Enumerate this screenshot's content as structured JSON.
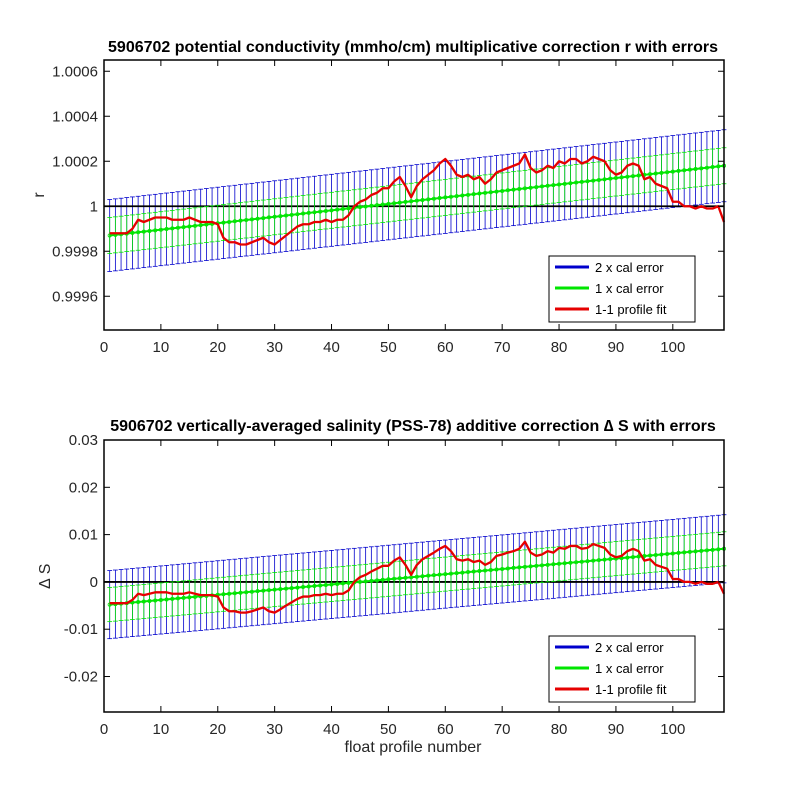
{
  "figure": {
    "background": "#ffffff"
  },
  "chart_data": [
    {
      "type": "line",
      "title": "5906702 potential conductivity (mmho/cm) multiplicative correction r with errors",
      "xlabel": "",
      "ylabel": "r",
      "xlim": [
        0,
        109
      ],
      "ylim": [
        0.99945,
        1.00065
      ],
      "xticks": [
        0,
        10,
        20,
        30,
        40,
        50,
        60,
        70,
        80,
        90,
        100
      ],
      "xtick_labels": [
        "0",
        "10",
        "20",
        "30",
        "40",
        "50",
        "60",
        "70",
        "80",
        "90",
        "100"
      ],
      "yticks": [
        0.9996,
        0.9998,
        1.0,
        1.0002,
        1.0004,
        1.0006
      ],
      "ytick_labels": [
        "0.9996",
        "0.9998",
        "1",
        "1.0002",
        "1.0004",
        "1.0006"
      ],
      "reference_line": 1,
      "fit": {
        "start": 0.99987,
        "end": 1.00018,
        "one_sigma": 8e-05,
        "two_sigma": 0.00016
      },
      "grid": false,
      "legend_position": "bottom-right",
      "series": [
        {
          "name": "2 x cal error",
          "color": "#0000cc",
          "kind": "errorbar-2x"
        },
        {
          "name": "1 x cal error",
          "color": "#00e600",
          "kind": "errorbar-1x"
        },
        {
          "name": "1-1 profile fit",
          "color": "#e60000",
          "kind": "line",
          "x": [
            1,
            2,
            3,
            4,
            5,
            6,
            7,
            8,
            9,
            10,
            11,
            12,
            13,
            14,
            15,
            16,
            17,
            18,
            19,
            20,
            21,
            22,
            23,
            24,
            25,
            26,
            27,
            28,
            29,
            30,
            31,
            32,
            33,
            34,
            35,
            36,
            37,
            38,
            39,
            40,
            41,
            42,
            43,
            44,
            45,
            46,
            47,
            48,
            49,
            50,
            51,
            52,
            53,
            54,
            55,
            56,
            57,
            58,
            59,
            60,
            61,
            62,
            63,
            64,
            65,
            66,
            67,
            68,
            69,
            70,
            71,
            72,
            73,
            74,
            75,
            76,
            77,
            78,
            79,
            80,
            81,
            82,
            83,
            84,
            85,
            86,
            87,
            88,
            89,
            90,
            91,
            92,
            93,
            94,
            95,
            96,
            97,
            98,
            99,
            100,
            101,
            102,
            103,
            104,
            105,
            106,
            107,
            108,
            109
          ],
          "values": [
            0.99988,
            0.99988,
            0.99988,
            0.99988,
            0.9999,
            0.99994,
            0.99993,
            0.99994,
            0.99995,
            0.99995,
            0.99995,
            0.99994,
            0.99994,
            0.99994,
            0.99995,
            0.99994,
            0.99993,
            0.99993,
            0.99993,
            0.99992,
            0.99986,
            0.99984,
            0.99984,
            0.99983,
            0.99983,
            0.99984,
            0.99985,
            0.99986,
            0.99984,
            0.99983,
            0.99985,
            0.99987,
            0.99989,
            0.99991,
            0.99992,
            0.99992,
            0.99993,
            0.99993,
            0.99994,
            0.99993,
            0.99994,
            0.99994,
            0.99996,
            1.0,
            1.00002,
            1.00003,
            1.00005,
            1.00006,
            1.00008,
            1.00008,
            1.00011,
            1.00013,
            1.00009,
            1.00004,
            1.00009,
            1.00012,
            1.00014,
            1.00016,
            1.00019,
            1.00021,
            1.00018,
            1.00014,
            1.00013,
            1.00014,
            1.00012,
            1.00013,
            1.0001,
            1.00012,
            1.00015,
            1.00016,
            1.00017,
            1.00018,
            1.00019,
            1.00023,
            1.00017,
            1.00015,
            1.00016,
            1.00018,
            1.00017,
            1.0002,
            1.00019,
            1.00021,
            1.00021,
            1.00019,
            1.0002,
            1.00022,
            1.00021,
            1.0002,
            1.00016,
            1.00014,
            1.00015,
            1.00018,
            1.00019,
            1.00018,
            1.00012,
            1.00013,
            1.0001,
            1.00009,
            1.00008,
            1.00002,
            1.00002,
            1.0,
            1.0,
            0.99999,
            1.0,
            0.99999,
            0.99999,
            1.0,
            0.99993
          ]
        }
      ]
    },
    {
      "type": "line",
      "title": "5906702 vertically-averaged salinity (PSS-78) additive correction ∆ S with errors",
      "xlabel": "float profile number",
      "ylabel": "∆ S",
      "xlim": [
        0,
        109
      ],
      "ylim": [
        -0.0275,
        0.03
      ],
      "xticks": [
        0,
        10,
        20,
        30,
        40,
        50,
        60,
        70,
        80,
        90,
        100
      ],
      "xtick_labels": [
        "0",
        "10",
        "20",
        "30",
        "40",
        "50",
        "60",
        "70",
        "80",
        "90",
        "100"
      ],
      "yticks": [
        -0.02,
        -0.01,
        0,
        0.01,
        0.02,
        0.03
      ],
      "ytick_labels": [
        "-0.02",
        "-0.01",
        "0",
        "0.01",
        "0.02",
        "0.03"
      ],
      "reference_line": 0,
      "fit": {
        "start": -0.0048,
        "end": 0.007,
        "one_sigma": 0.0036,
        "two_sigma": 0.0072
      },
      "grid": false,
      "legend_position": "bottom-right",
      "series": [
        {
          "name": "2 x cal error",
          "color": "#0000cc",
          "kind": "errorbar-2x"
        },
        {
          "name": "1 x cal error",
          "color": "#00e600",
          "kind": "errorbar-1x"
        },
        {
          "name": "1-1 profile fit",
          "color": "#e60000",
          "kind": "line",
          "x": [
            1,
            2,
            3,
            4,
            5,
            6,
            7,
            8,
            9,
            10,
            11,
            12,
            13,
            14,
            15,
            16,
            17,
            18,
            19,
            20,
            21,
            22,
            23,
            24,
            25,
            26,
            27,
            28,
            29,
            30,
            31,
            32,
            33,
            34,
            35,
            36,
            37,
            38,
            39,
            40,
            41,
            42,
            43,
            44,
            45,
            46,
            47,
            48,
            49,
            50,
            51,
            52,
            53,
            54,
            55,
            56,
            57,
            58,
            59,
            60,
            61,
            62,
            63,
            64,
            65,
            66,
            67,
            68,
            69,
            70,
            71,
            72,
            73,
            74,
            75,
            76,
            77,
            78,
            79,
            80,
            81,
            82,
            83,
            84,
            85,
            86,
            87,
            88,
            89,
            90,
            91,
            92,
            93,
            94,
            95,
            96,
            97,
            98,
            99,
            100,
            101,
            102,
            103,
            104,
            105,
            106,
            107,
            108,
            109
          ],
          "values": [
            -0.0045,
            -0.0045,
            -0.0045,
            -0.0045,
            -0.0038,
            -0.0025,
            -0.0028,
            -0.0025,
            -0.0022,
            -0.0022,
            -0.0022,
            -0.0025,
            -0.0025,
            -0.0025,
            -0.0022,
            -0.0025,
            -0.0028,
            -0.0028,
            -0.0028,
            -0.0031,
            -0.0054,
            -0.0062,
            -0.0062,
            -0.0065,
            -0.0065,
            -0.0062,
            -0.0058,
            -0.0054,
            -0.0062,
            -0.0065,
            -0.0058,
            -0.005,
            -0.0043,
            -0.0036,
            -0.0031,
            -0.0031,
            -0.0028,
            -0.0028,
            -0.0025,
            -0.0028,
            -0.0025,
            -0.0025,
            -0.0018,
            0.0,
            0.001,
            0.0015,
            0.0022,
            0.0028,
            0.0034,
            0.0034,
            0.0045,
            0.0052,
            0.0036,
            0.0015,
            0.0036,
            0.0048,
            0.0055,
            0.0062,
            0.007,
            0.0076,
            0.0065,
            0.0048,
            0.0045,
            0.0048,
            0.0042,
            0.0045,
            0.0036,
            0.0042,
            0.0055,
            0.0058,
            0.0062,
            0.0065,
            0.007,
            0.0085,
            0.0062,
            0.0055,
            0.0058,
            0.0065,
            0.0062,
            0.0072,
            0.007,
            0.0076,
            0.0076,
            0.007,
            0.0072,
            0.008,
            0.0076,
            0.0072,
            0.0058,
            0.0052,
            0.0055,
            0.0065,
            0.007,
            0.0065,
            0.0045,
            0.0048,
            0.0036,
            0.0032,
            0.0028,
            0.0006,
            0.0006,
            0.0,
            0.0,
            -0.0004,
            0.0,
            -0.0004,
            -0.0004,
            0.0,
            -0.0025
          ]
        }
      ]
    }
  ]
}
